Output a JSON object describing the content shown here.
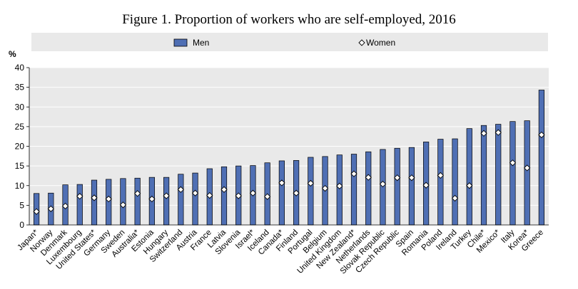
{
  "chart_data": {
    "type": "bar",
    "title": "Figure 1. Proportion of workers who are self-employed, 2016",
    "ylabel": "%",
    "xlabel": "",
    "ylim": [
      0,
      40
    ],
    "yticks": [
      0,
      5,
      10,
      15,
      20,
      25,
      30,
      35,
      40
    ],
    "legend_position": "top",
    "categories": [
      "Japan*",
      "Norway",
      "Denmark",
      "Luxembourg",
      "United States*",
      "Germany",
      "Sweden",
      "Australia*",
      "Estonia",
      "Hungary",
      "Switzerland",
      "Austria",
      "France",
      "Latvia",
      "Slovenia",
      "Israel*",
      "Iceland",
      "Canada*",
      "Finland",
      "Portugal",
      "Belgium",
      "United Kingdom",
      "New Zealand*",
      "Netherlands",
      "Slovak Republic",
      "Czech Republic",
      "Spain",
      "Romania",
      "Poland",
      "Ireland",
      "Turkey",
      "Chile*",
      "Mexico*",
      "Italy",
      "Korea*",
      "Greece"
    ],
    "series": [
      {
        "name": "Men",
        "kind": "bar",
        "color": "#4f6fb4",
        "values": [
          8.0,
          8.1,
          10.2,
          10.3,
          11.4,
          11.6,
          11.8,
          11.9,
          12.1,
          12.1,
          12.9,
          13.2,
          14.3,
          14.8,
          15.0,
          15.1,
          15.8,
          16.3,
          16.4,
          17.2,
          17.4,
          17.8,
          18.0,
          18.6,
          19.2,
          19.5,
          19.7,
          21.1,
          21.8,
          21.9,
          24.5,
          25.3,
          25.6,
          26.3,
          26.5,
          34.3
        ]
      },
      {
        "name": "Women",
        "kind": "marker",
        "color": "#ffffff",
        "values": [
          3.4,
          4.1,
          4.8,
          7.3,
          6.9,
          6.6,
          5.1,
          8.0,
          6.6,
          7.4,
          9.0,
          8.1,
          7.5,
          9.0,
          7.4,
          8.1,
          7.2,
          10.7,
          8.1,
          10.6,
          9.3,
          9.9,
          13.0,
          12.1,
          10.4,
          12.0,
          12.0,
          10.1,
          12.6,
          6.8,
          10.0,
          23.3,
          23.5,
          15.8,
          14.5,
          22.9
        ]
      }
    ]
  }
}
